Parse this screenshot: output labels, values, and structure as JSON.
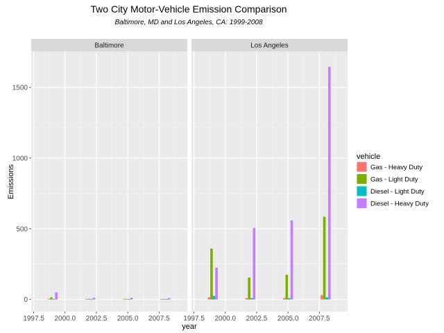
{
  "chart_data": {
    "type": "bar",
    "title": "Two City Motor-Vehicle Emission Comparison",
    "subtitle": "Baltimore, MD and Los Angeles, CA: 1999-2008",
    "xlabel": "year",
    "ylabel": "Emissions",
    "x_ticks": [
      "1997.5",
      "2000.0",
      "2002.5",
      "2005.0",
      "2007.5"
    ],
    "y_ticks": [
      "0",
      "500",
      "1000",
      "1500"
    ],
    "xlim": [
      1997.3,
      2009.75
    ],
    "ylim": [
      -85,
      1755
    ],
    "grid": true,
    "legend_title": "vehicle",
    "legend_position": "right",
    "categories": [
      "1999",
      "2002",
      "2005",
      "2008"
    ],
    "series": [
      {
        "name": "Gas - Heavy Duty",
        "color": "#F8766D"
      },
      {
        "name": "Gas - Light Duty",
        "color": "#7CAE00"
      },
      {
        "name": "Diesel - Light Duty",
        "color": "#00BFC4"
      },
      {
        "name": "Diesel - Heavy Duty",
        "color": "#C77CFF"
      }
    ],
    "panels": [
      {
        "name": "Baltimore",
        "values": [
          [
            5,
            15,
            3,
            50
          ],
          [
            4,
            5,
            2,
            12
          ],
          [
            4,
            4,
            2,
            12
          ],
          [
            3,
            4,
            2,
            10
          ]
        ]
      },
      {
        "name": "Los Angeles",
        "values": [
          [
            15,
            360,
            25,
            225
          ],
          [
            10,
            155,
            10,
            505
          ],
          [
            10,
            175,
            10,
            560
          ],
          [
            30,
            585,
            15,
            1645
          ]
        ]
      }
    ]
  }
}
